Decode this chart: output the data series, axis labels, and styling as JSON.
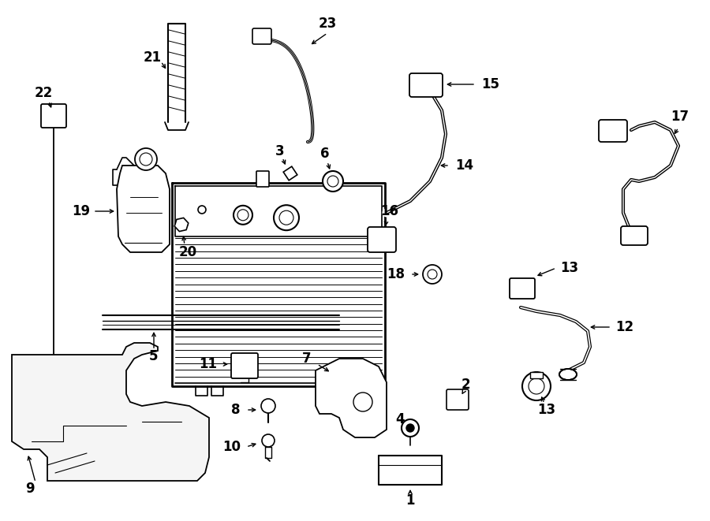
{
  "bg_color": "#ffffff",
  "line_color": "#000000",
  "figsize": [
    9.0,
    6.61
  ],
  "dpi": 100,
  "lw": 1.3
}
